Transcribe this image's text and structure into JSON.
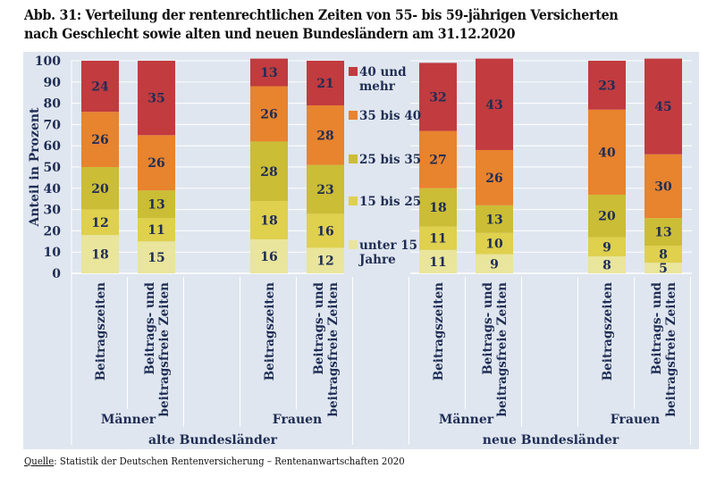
{
  "title_line1": "Abb. 31: Verteilung der rentenrechtlichen Zeiten von 55- bis 59-jährigen Versicherten",
  "title_line2": "nach Geschlecht sowie alten und neuen Bundesländern am 31.12.2020",
  "source_label": "Quelle",
  "source_text": ": Statistik der Deutschen Rentenversicherung – Rentenanwartschaften 2020",
  "chart_data": {
    "type": "bar",
    "stacked": true,
    "title": "Verteilung der rentenrechtlichen Zeiten von 55- bis 59-jährigen Versicherten nach Geschlecht sowie alten und neuen Bundesländern am 31.12.2020",
    "ylabel": "Anteil in Prozent",
    "xlabel": "",
    "ylim": [
      0,
      100
    ],
    "yticks": [
      0,
      10,
      20,
      30,
      40,
      50,
      60,
      70,
      80,
      90,
      100
    ],
    "grid": true,
    "legend_position": "right-center (between groups)",
    "categories": [
      "Beitragszeiten",
      "Beitrags- und beitragsfreie Zeiten",
      "Beitragszeiten",
      "Beitrags- und beitragsfreie Zeiten",
      "Beitragszeiten",
      "Beitrags- und beitragsfreie Zeiten",
      "Beitragszeiten",
      "Beitrags- und beitragsfreie Zeiten"
    ],
    "category_label_lines": [
      [
        "Beitragszeiten"
      ],
      [
        "Beitrags- und",
        "beitragsfreie Zeiten"
      ],
      [
        "Beitragszeiten"
      ],
      [
        "Beitrags- und",
        "beitragsfreie Zeiten"
      ],
      [
        "Beitragszeiten"
      ],
      [
        "Beitrags- und",
        "beitragsfreie Zeiten"
      ],
      [
        "Beitragszeiten"
      ],
      [
        "Beitrags- und",
        "beitragsfreie Zeiten"
      ]
    ],
    "groups_level1": [
      "Männer",
      "Frauen",
      "Männer",
      "Frauen"
    ],
    "groups_level2": [
      "alte Bundesländer",
      "neue Bundesländer"
    ],
    "series": [
      {
        "name": "unter 15 Jahre",
        "label_lines": [
          "unter 15",
          "Jahre"
        ],
        "color": "#e9e59c",
        "values": [
          18,
          15,
          16,
          12,
          11,
          9,
          8,
          5
        ]
      },
      {
        "name": "15 bis 25",
        "label_lines": [
          "15 bis 25"
        ],
        "color": "#dfd04d",
        "values": [
          12,
          11,
          18,
          16,
          11,
          10,
          9,
          8
        ]
      },
      {
        "name": "25 bis 35",
        "label_lines": [
          "25 bis 35"
        ],
        "color": "#cbbd35",
        "values": [
          20,
          13,
          28,
          23,
          18,
          13,
          20,
          13
        ]
      },
      {
        "name": "35 bis 40",
        "label_lines": [
          "35 bis 40"
        ],
        "color": "#e8832e",
        "values": [
          26,
          26,
          26,
          28,
          27,
          26,
          40,
          30
        ]
      },
      {
        "name": "40 und mehr",
        "label_lines": [
          "40 und",
          "mehr"
        ],
        "color": "#c13b3f",
        "values": [
          24,
          35,
          13,
          21,
          32,
          43,
          23,
          45
        ]
      }
    ]
  }
}
